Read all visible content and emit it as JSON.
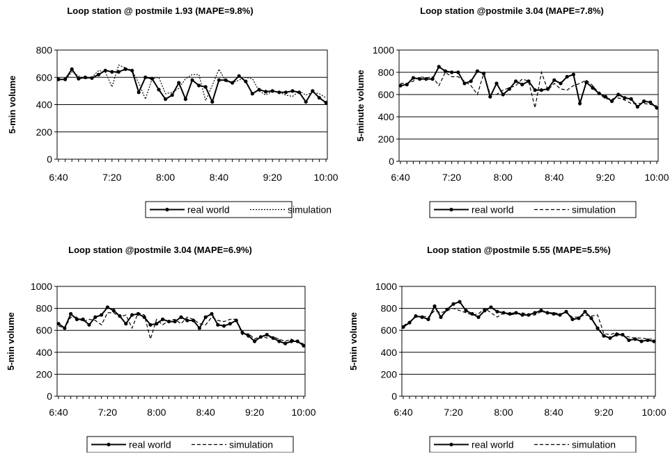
{
  "chart_data": [
    {
      "type": "line",
      "title": "Loop station @ postmile 1.93 (MAPE=9.8%)",
      "ylabel": "5-min volume",
      "xlabel": "",
      "ylim": [
        0,
        800
      ],
      "yticks": [
        "0",
        "200",
        "400",
        "600",
        "800"
      ],
      "xticks": [
        "6:40",
        "7:20",
        "8:00",
        "8:40",
        "9:20",
        "10:00"
      ],
      "x": [
        "6:40",
        "6:45",
        "6:50",
        "6:55",
        "7:00",
        "7:05",
        "7:10",
        "7:15",
        "7:20",
        "7:25",
        "7:30",
        "7:35",
        "7:40",
        "7:45",
        "7:50",
        "7:55",
        "8:00",
        "8:05",
        "8:10",
        "8:15",
        "8:20",
        "8:25",
        "8:30",
        "8:35",
        "8:40",
        "8:45",
        "8:50",
        "8:55",
        "9:00",
        "9:05",
        "9:10",
        "9:15",
        "9:20",
        "9:25",
        "9:30",
        "9:35",
        "9:40",
        "9:45",
        "9:50",
        "9:55",
        "10:00"
      ],
      "series": [
        {
          "name": "real world",
          "style": "solid-marker",
          "values": [
            585,
            585,
            660,
            590,
            600,
            595,
            620,
            650,
            640,
            640,
            660,
            650,
            490,
            600,
            590,
            510,
            440,
            470,
            560,
            440,
            580,
            540,
            530,
            420,
            580,
            580,
            560,
            610,
            570,
            480,
            510,
            495,
            500,
            490,
            490,
            500,
            490,
            420,
            500,
            450,
            415
          ]
        },
        {
          "name": "simulation",
          "style": "dotted",
          "values": [
            590,
            580,
            640,
            610,
            590,
            600,
            650,
            640,
            530,
            690,
            670,
            650,
            560,
            440,
            590,
            600,
            480,
            490,
            520,
            590,
            620,
            620,
            430,
            540,
            660,
            570,
            560,
            580,
            600,
            590,
            500,
            470,
            500,
            490,
            470,
            460,
            500,
            470,
            490,
            480,
            450
          ]
        }
      ],
      "legend": "bottom"
    },
    {
      "type": "line",
      "title": "Loop station @postmile 3.04 (MAPE=7.8%)",
      "ylabel": "5-minute volume",
      "xlabel": "",
      "ylim": [
        0,
        1000
      ],
      "yticks": [
        "0",
        "200",
        "400",
        "600",
        "800",
        "1000"
      ],
      "xticks": [
        "6:40",
        "7:20",
        "8:00",
        "8:40",
        "9:20",
        "10:00"
      ],
      "x": [
        "6:40",
        "6:45",
        "6:50",
        "6:55",
        "7:00",
        "7:05",
        "7:10",
        "7:15",
        "7:20",
        "7:25",
        "7:30",
        "7:35",
        "7:40",
        "7:45",
        "7:50",
        "7:55",
        "8:00",
        "8:05",
        "8:10",
        "8:15",
        "8:20",
        "8:25",
        "8:30",
        "8:35",
        "8:40",
        "8:45",
        "8:50",
        "8:55",
        "9:00",
        "9:05",
        "9:10",
        "9:15",
        "9:20",
        "9:25",
        "9:30",
        "9:35",
        "9:40",
        "9:45",
        "9:50",
        "9:55",
        "10:00"
      ],
      "series": [
        {
          "name": "real world",
          "style": "solid-marker",
          "values": [
            680,
            690,
            750,
            740,
            740,
            740,
            850,
            810,
            800,
            800,
            700,
            720,
            810,
            790,
            580,
            700,
            600,
            650,
            720,
            690,
            720,
            640,
            640,
            650,
            730,
            700,
            760,
            780,
            520,
            710,
            660,
            610,
            580,
            540,
            600,
            570,
            560,
            490,
            540,
            530,
            480
          ]
        },
        {
          "name": "simulation",
          "style": "dashed",
          "values": [
            700,
            700,
            720,
            760,
            750,
            760,
            680,
            800,
            760,
            760,
            720,
            680,
            600,
            790,
            600,
            600,
            640,
            660,
            680,
            740,
            720,
            480,
            800,
            640,
            700,
            650,
            640,
            680,
            700,
            730,
            680,
            610,
            560,
            560,
            570,
            550,
            520,
            520,
            520,
            510,
            500
          ]
        }
      ],
      "legend": "bottom"
    },
    {
      "type": "line",
      "title": "Loop station @postmile 3.04 (MAPE=6.9%)",
      "ylabel": "5-min volume",
      "xlabel": "",
      "ylim": [
        0,
        1000
      ],
      "yticks": [
        "0",
        "200",
        "400",
        "600",
        "800",
        "1000"
      ],
      "xticks": [
        "6:40",
        "7:20",
        "8:00",
        "8:40",
        "9:20",
        "10:00"
      ],
      "x": [
        "6:40",
        "6:45",
        "6:50",
        "6:55",
        "7:00",
        "7:05",
        "7:10",
        "7:15",
        "7:20",
        "7:25",
        "7:30",
        "7:35",
        "7:40",
        "7:45",
        "7:50",
        "7:55",
        "8:00",
        "8:05",
        "8:10",
        "8:15",
        "8:20",
        "8:25",
        "8:30",
        "8:35",
        "8:40",
        "8:45",
        "8:50",
        "8:55",
        "9:00",
        "9:05",
        "9:10",
        "9:15",
        "9:20",
        "9:25",
        "9:30",
        "9:35",
        "9:40",
        "9:45",
        "9:50",
        "9:55",
        "10:00"
      ],
      "series": [
        {
          "name": "real world",
          "style": "solid-marker",
          "values": [
            660,
            620,
            750,
            700,
            700,
            650,
            720,
            740,
            810,
            780,
            730,
            660,
            740,
            750,
            720,
            650,
            660,
            700,
            680,
            680,
            720,
            690,
            690,
            620,
            720,
            750,
            650,
            640,
            660,
            690,
            580,
            550,
            500,
            540,
            560,
            530,
            500,
            480,
            500,
            500,
            460
          ]
        },
        {
          "name": "simulation",
          "style": "dashed",
          "values": [
            640,
            620,
            720,
            720,
            680,
            700,
            690,
            650,
            760,
            760,
            720,
            740,
            620,
            760,
            740,
            520,
            700,
            650,
            690,
            700,
            660,
            720,
            700,
            660,
            650,
            720,
            690,
            680,
            700,
            700,
            560,
            570,
            520,
            550,
            530,
            540,
            520,
            500,
            520,
            490,
            480
          ]
        }
      ],
      "legend": "bottom"
    },
    {
      "type": "line",
      "title": "Loop station @postmile 5.55 (MAPE=5.5%)",
      "ylabel": "5-min volume",
      "xlabel": "",
      "ylim": [
        0,
        1000
      ],
      "yticks": [
        "0",
        "200",
        "400",
        "600",
        "800",
        "1000"
      ],
      "xticks": [
        "6:40",
        "7:20",
        "8:00",
        "8:40",
        "9:20",
        "10:00"
      ],
      "x": [
        "6:40",
        "6:45",
        "6:50",
        "6:55",
        "7:00",
        "7:05",
        "7:10",
        "7:15",
        "7:20",
        "7:25",
        "7:30",
        "7:35",
        "7:40",
        "7:45",
        "7:50",
        "7:55",
        "8:00",
        "8:05",
        "8:10",
        "8:15",
        "8:20",
        "8:25",
        "8:30",
        "8:35",
        "8:40",
        "8:45",
        "8:50",
        "8:55",
        "9:00",
        "9:05",
        "9:10",
        "9:15",
        "9:20",
        "9:25",
        "9:30",
        "9:35",
        "9:40",
        "9:45",
        "9:50",
        "9:55",
        "10:00"
      ],
      "series": [
        {
          "name": "real world",
          "style": "solid-marker",
          "values": [
            630,
            670,
            730,
            720,
            700,
            820,
            720,
            790,
            840,
            860,
            780,
            750,
            720,
            780,
            810,
            770,
            760,
            750,
            760,
            740,
            740,
            760,
            780,
            760,
            750,
            740,
            770,
            700,
            710,
            770,
            710,
            620,
            550,
            530,
            560,
            560,
            510,
            520,
            500,
            510,
            500
          ]
        },
        {
          "name": "simulation",
          "style": "dashed",
          "values": [
            640,
            680,
            720,
            730,
            720,
            780,
            760,
            780,
            800,
            780,
            760,
            740,
            750,
            800,
            760,
            720,
            760,
            740,
            750,
            760,
            740,
            740,
            770,
            760,
            760,
            750,
            760,
            720,
            720,
            740,
            730,
            740,
            570,
            560,
            580,
            550,
            540,
            530,
            530,
            520,
            520
          ]
        }
      ],
      "legend": "bottom"
    }
  ]
}
